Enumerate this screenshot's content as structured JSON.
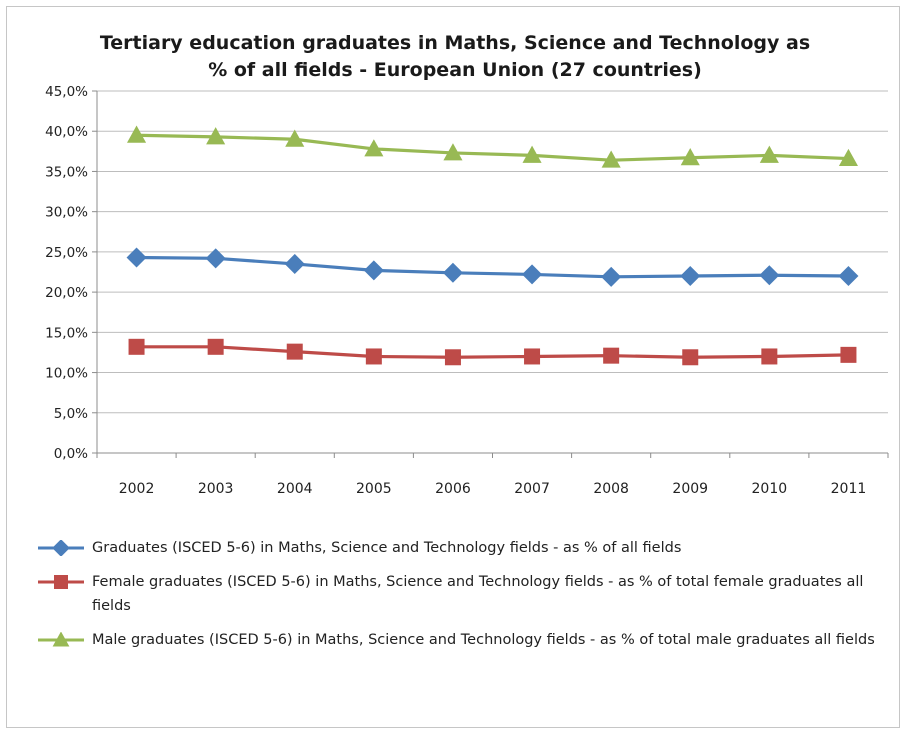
{
  "chart_data": {
    "type": "line",
    "title_line1": "Tertiary education graduates in Maths, Science and Technology as",
    "title_line2": "% of all fields - European Union (27 countries)",
    "xlabel": "",
    "ylabel": "",
    "x": [
      "2002",
      "2003",
      "2004",
      "2005",
      "2006",
      "2007",
      "2008",
      "2009",
      "2010",
      "2011"
    ],
    "ylim": [
      0,
      45
    ],
    "yticks": [
      {
        "value": 0,
        "label": "0,0%"
      },
      {
        "value": 5,
        "label": "5,0%"
      },
      {
        "value": 10,
        "label": "10,0%"
      },
      {
        "value": 15,
        "label": "15,0%"
      },
      {
        "value": 20,
        "label": "20,0%"
      },
      {
        "value": 25,
        "label": "25,0%"
      },
      {
        "value": 30,
        "label": "30,0%"
      },
      {
        "value": 35,
        "label": "35,0%"
      },
      {
        "value": 40,
        "label": "40,0%"
      },
      {
        "value": 45,
        "label": "45,0%"
      }
    ],
    "grid": true,
    "legend_position": "bottom",
    "series": [
      {
        "name": "Graduates (ISCED 5-6) in Maths, Science and Technology fields - as % of all fields",
        "color": "#4a7ebb",
        "marker": "diamond",
        "values": [
          24.3,
          24.2,
          23.5,
          22.7,
          22.4,
          22.2,
          21.9,
          22.0,
          22.1,
          22.0
        ]
      },
      {
        "name": "Female graduates (ISCED 5-6) in Maths, Science and Technology fields - as % of total female graduates all fields",
        "color": "#be4b48",
        "marker": "square",
        "values": [
          13.2,
          13.2,
          12.6,
          12.0,
          11.9,
          12.0,
          12.1,
          11.9,
          12.0,
          12.2
        ]
      },
      {
        "name": "Male graduates (ISCED 5-6) in Maths, Science and Technology fields - as % of total male graduates all fields",
        "color": "#98b954",
        "marker": "triangle",
        "values": [
          39.5,
          39.3,
          39.0,
          37.8,
          37.3,
          37.0,
          36.4,
          36.7,
          37.0,
          36.6
        ]
      }
    ]
  }
}
